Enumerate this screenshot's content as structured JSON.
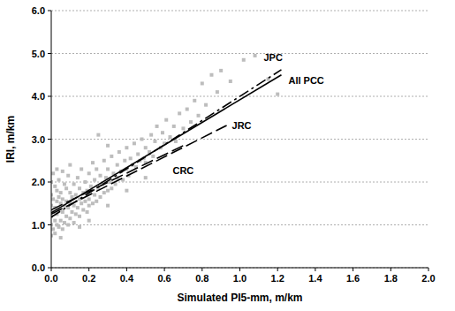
{
  "chart_data": {
    "type": "scatter",
    "x_label": "Simulated PI5-mm, m/km",
    "y_label": "IRI, m/km",
    "xlim": [
      0,
      2
    ],
    "ylim": [
      0,
      6
    ],
    "xticks": [
      {
        "value": 0,
        "label": "0.0"
      },
      {
        "value": 0.2,
        "label": "0.2"
      },
      {
        "value": 0.4,
        "label": "0.4"
      },
      {
        "value": 0.6,
        "label": "0.6"
      },
      {
        "value": 0.8,
        "label": "0.8"
      },
      {
        "value": 1,
        "label": "1.0"
      },
      {
        "value": 1.2,
        "label": "1.2"
      },
      {
        "value": 1.4,
        "label": "1.4"
      },
      {
        "value": 1.6,
        "label": "1.6"
      },
      {
        "value": 1.8,
        "label": "1.8"
      },
      {
        "value": 2,
        "label": "2.0"
      }
    ],
    "yticks": [
      {
        "value": 0,
        "label": "0.0"
      },
      {
        "value": 1,
        "label": "1.0"
      },
      {
        "value": 2,
        "label": "2.0"
      },
      {
        "value": 3,
        "label": "3.0"
      },
      {
        "value": 4,
        "label": "4.0"
      },
      {
        "value": 5,
        "label": "5.0"
      },
      {
        "value": 6,
        "label": "6.0"
      }
    ],
    "grid": true,
    "series": [
      {
        "type": "scatter",
        "color": "#bdbdbd",
        "marker": "square",
        "x": [
          0,
          0,
          0,
          0,
          0,
          0,
          0.01,
          0.01,
          0.01,
          0.01,
          0.02,
          0.02,
          0.02,
          0.02,
          0.03,
          0.03,
          0.03,
          0.03,
          0.03,
          0.04,
          0.04,
          0.04,
          0.04,
          0.05,
          0.05,
          0.05,
          0.06,
          0.06,
          0.06,
          0.06,
          0.07,
          0.07,
          0.07,
          0.08,
          0.08,
          0.08,
          0.09,
          0.09,
          0.09,
          0.1,
          0.1,
          0.1,
          0.1,
          0.11,
          0.11,
          0.12,
          0.12,
          0.12,
          0.13,
          0.13,
          0.14,
          0.14,
          0.15,
          0.15,
          0.15,
          0.16,
          0.16,
          0.17,
          0.17,
          0.18,
          0.18,
          0.19,
          0.19,
          0.2,
          0.2,
          0.2,
          0.21,
          0.22,
          0.22,
          0.23,
          0.23,
          0.24,
          0.24,
          0.25,
          0.26,
          0.26,
          0.27,
          0.28,
          0.28,
          0.29,
          0.3,
          0.3,
          0.31,
          0.32,
          0.32,
          0.33,
          0.34,
          0.35,
          0.35,
          0.36,
          0.37,
          0.38,
          0.39,
          0.4,
          0.4,
          0.41,
          0.42,
          0.43,
          0.44,
          0.45,
          0.46,
          0.47,
          0.48,
          0.49,
          0.5,
          0.5,
          0.52,
          0.53,
          0.54,
          0.55,
          0.56,
          0.58,
          0.59,
          0.6,
          0.61,
          0.63,
          0.65,
          0.66,
          0.68,
          0.7,
          0.72,
          0.74,
          0.76,
          0.78,
          0.8,
          0.82,
          0.85,
          0.88,
          0.9,
          0.95,
          1.02,
          1.08,
          1.15,
          1.2,
          0.25,
          0.3,
          0.05,
          0.15,
          0.2,
          0.3,
          0.4,
          0.5
        ],
        "values": [
          0.75,
          1.0,
          1.2,
          1.45,
          1.7,
          2.0,
          0.9,
          1.3,
          1.6,
          2.2,
          0.8,
          1.1,
          1.4,
          1.9,
          1.0,
          1.25,
          1.55,
          1.8,
          2.3,
          0.95,
          1.35,
          1.65,
          2.05,
          1.1,
          1.5,
          1.75,
          0.9,
          1.3,
          1.6,
          2.25,
          1.05,
          1.45,
          1.95,
          1.2,
          1.55,
          1.85,
          1.0,
          1.4,
          2.15,
          1.15,
          1.5,
          1.75,
          2.4,
          1.3,
          1.65,
          1.05,
          1.45,
          1.95,
          1.25,
          1.7,
          1.4,
          2.1,
          1.2,
          1.6,
          1.85,
          1.5,
          2.3,
          1.35,
          1.75,
          1.55,
          2.0,
          1.3,
          1.8,
          1.6,
          2.2,
          1.45,
          1.9,
          1.5,
          2.45,
          1.7,
          2.05,
          1.55,
          2.3,
          1.85,
          1.65,
          2.15,
          1.95,
          1.75,
          2.5,
          2.1,
          1.8,
          2.3,
          2.0,
          1.85,
          2.6,
          2.2,
          1.95,
          2.4,
          2.1,
          2.7,
          2.25,
          2.05,
          2.5,
          2.3,
          2.8,
          2.15,
          2.55,
          2.4,
          2.9,
          2.35,
          2.65,
          2.5,
          3.0,
          2.55,
          2.8,
          2.45,
          2.7,
          3.1,
          2.6,
          2.95,
          3.3,
          2.8,
          3.15,
          2.9,
          3.45,
          3.05,
          3.3,
          2.95,
          3.6,
          3.25,
          3.7,
          3.4,
          3.9,
          3.55,
          4.3,
          3.8,
          4.5,
          4.1,
          4.6,
          4.35,
          4.85,
          4.95,
          4.4,
          4.05,
          3.1,
          2.85,
          0.7,
          0.95,
          1.1,
          1.45,
          1.8,
          2.1
        ]
      },
      {
        "name": "JPC",
        "type": "line",
        "color": "#000000",
        "line_style": "dashdot",
        "x": [
          0,
          1.22
        ],
        "values": [
          1.18,
          4.62
        ]
      },
      {
        "name": "All PCC",
        "type": "line",
        "color": "#000000",
        "line_style": "solid",
        "x": [
          0,
          1.22
        ],
        "values": [
          1.28,
          4.5
        ]
      },
      {
        "name": "JRC",
        "type": "line",
        "color": "#000000",
        "line_style": "dashed",
        "x": [
          0,
          0.93
        ],
        "values": [
          1.25,
          3.32
        ]
      },
      {
        "name": "CRC",
        "type": "line",
        "color": "#000000",
        "line_style": "dashed",
        "x": [
          0,
          0.7
        ],
        "values": [
          1.35,
          2.85
        ]
      }
    ]
  }
}
